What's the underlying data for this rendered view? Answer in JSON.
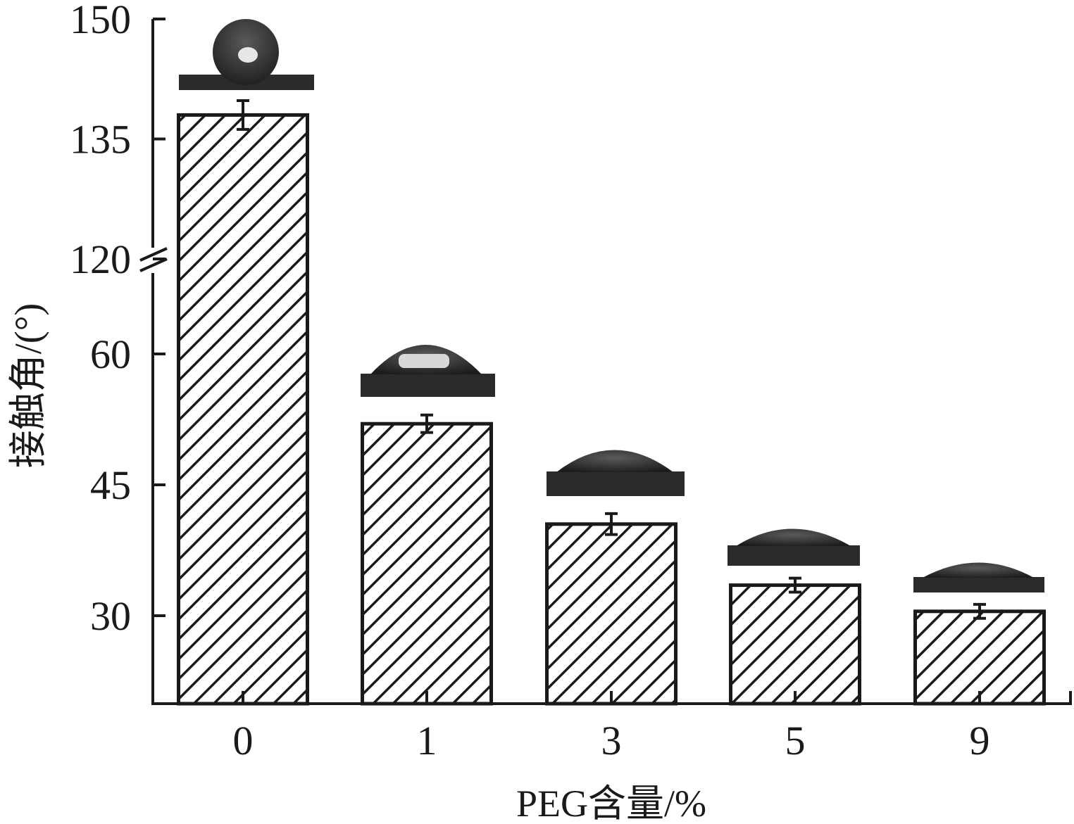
{
  "chart_data": {
    "type": "bar",
    "categories": [
      "0",
      "1",
      "3",
      "5",
      "9"
    ],
    "values": [
      138,
      52,
      40.5,
      33.5,
      30.5
    ],
    "errors": [
      1.8,
      1.0,
      1.2,
      0.8,
      0.8
    ],
    "xlabel": "PEG含量/%",
    "ylabel": "接触角/(°)",
    "yticks": [
      "30",
      "45",
      "60",
      "120",
      "135",
      "150"
    ],
    "y_axis_break": {
      "lower_range": [
        20,
        68
      ],
      "upper_range": [
        120,
        150
      ]
    },
    "bar_fill": "diagonal-hatch",
    "insets": "water droplet photographs above each bar",
    "colors": {
      "ink": "#1a1a1a",
      "photo": "#2b2b2b"
    }
  }
}
